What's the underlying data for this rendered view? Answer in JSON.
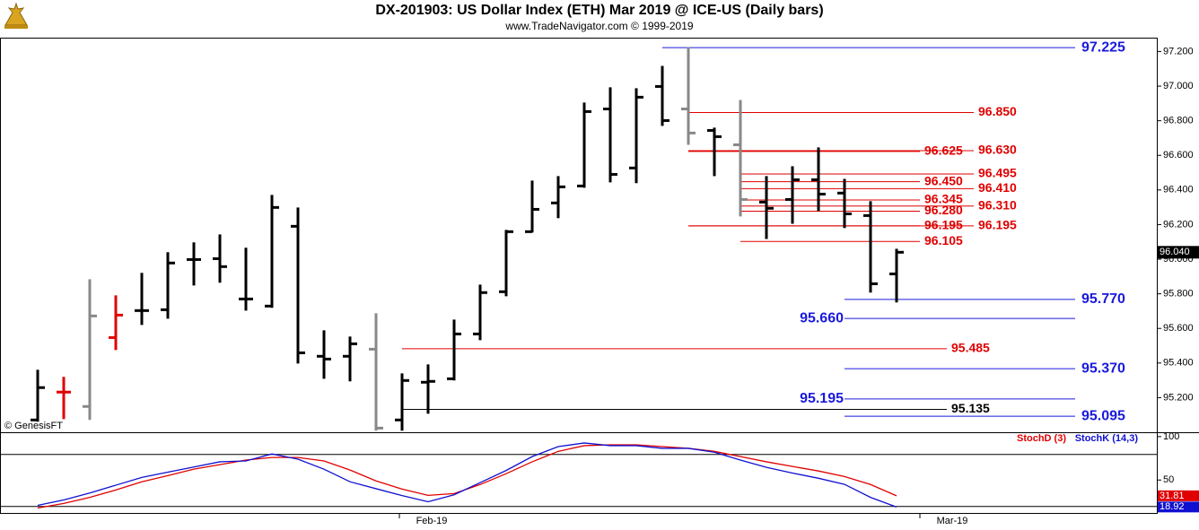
{
  "chart_data": [
    {
      "type": "ohlc",
      "title": "DX-201903:  US Dollar Index (ETH) Mar 2019 @ ICE-US  (Daily bars)",
      "subtitle": "www.TradeNavigator.com © 1999-2019",
      "watermark": "© GenesisFT",
      "open": [
        95.071,
        95.232,
        95.149,
        95.547,
        95.703,
        95.708,
        95.998,
        96.003,
        95.77,
        95.729,
        96.19,
        95.439,
        95.439,
        95.48,
        95.071,
        95.289,
        95.309,
        95.568,
        95.812,
        96.159,
        96.325,
        96.423,
        96.868,
        96.527,
        96.998,
        96.868,
        96.744,
        96.661,
        96.33,
        96.345,
        96.459,
        96.382,
        96.252,
        95.915
      ],
      "high": [
        95.361,
        95.32,
        95.884,
        95.791,
        95.921,
        96.04,
        96.097,
        96.143,
        96.066,
        96.371,
        96.299,
        95.589,
        95.553,
        95.687,
        95.34,
        95.392,
        95.651,
        95.853,
        96.169,
        96.454,
        96.48,
        96.905,
        96.993,
        96.988,
        97.117,
        97.225,
        96.76,
        96.92,
        96.48,
        96.537,
        96.646,
        96.464,
        96.335,
        96.06
      ],
      "low": [
        95.061,
        95.076,
        95.071,
        95.475,
        95.62,
        95.656,
        95.848,
        95.864,
        95.703,
        95.719,
        95.397,
        95.309,
        95.294,
        95.009,
        95.009,
        95.107,
        95.299,
        95.532,
        95.786,
        96.154,
        96.237,
        96.413,
        96.444,
        96.439,
        96.77,
        96.661,
        96.48,
        96.247,
        96.117,
        96.205,
        96.278,
        96.18,
        95.807,
        95.75
      ],
      "close": [
        95.258,
        95.232,
        95.672,
        95.677,
        95.703,
        95.978,
        95.998,
        95.957,
        95.77,
        96.299,
        95.459,
        95.423,
        95.511,
        95.024,
        95.299,
        95.294,
        95.568,
        95.807,
        96.159,
        96.288,
        96.418,
        96.853,
        96.49,
        96.936,
        96.801,
        96.729,
        96.708,
        96.345,
        96.294,
        96.459,
        96.376,
        96.262,
        95.858,
        96.04
      ],
      "colors": [
        "#000000",
        "#e00000",
        "#888888",
        "#e00000",
        "#000000",
        "#000000",
        "#000000",
        "#000000",
        "#000000",
        "#000000",
        "#000000",
        "#000000",
        "#000000",
        "#888888",
        "#000000",
        "#000000",
        "#000000",
        "#000000",
        "#000000",
        "#000000",
        "#000000",
        "#000000",
        "#000000",
        "#000000",
        "#000000",
        "#888888",
        "#000000",
        "#888888",
        "#000000",
        "#000000",
        "#000000",
        "#000000",
        "#000000",
        "#000000"
      ],
      "ylim": [
        95.0,
        97.28
      ],
      "yticks": [
        {
          "value": 97.2,
          "label": "97.200"
        },
        {
          "value": 97.0,
          "label": "97.000"
        },
        {
          "value": 96.8,
          "label": "96.800"
        },
        {
          "value": 96.6,
          "label": "96.600"
        },
        {
          "value": 96.4,
          "label": "96.400"
        },
        {
          "value": 96.2,
          "label": "96.200"
        },
        {
          "value": 96.0,
          "label": "96.000"
        },
        {
          "value": 95.8,
          "label": "95.800"
        },
        {
          "value": 95.6,
          "label": "95.600"
        },
        {
          "value": 95.4,
          "label": "95.400"
        },
        {
          "value": 95.2,
          "label": "95.200"
        }
      ],
      "last_price": {
        "value": 96.04,
        "label": "96.040"
      },
      "levels": [
        {
          "value": 97.225,
          "label": "97.225",
          "color": "#1a1adc"
        },
        {
          "value": 96.85,
          "label": "96.850",
          "color": "#e00000"
        },
        {
          "value": 96.625,
          "label": "96.625",
          "color": "#e00000"
        },
        {
          "value": 96.63,
          "label": "96.630",
          "color": "#e00000"
        },
        {
          "value": 96.495,
          "label": "96.495",
          "color": "#e00000"
        },
        {
          "value": 96.45,
          "label": "96.450",
          "color": "#e00000"
        },
        {
          "value": 96.41,
          "label": "96.410",
          "color": "#e00000"
        },
        {
          "value": 96.345,
          "label": "96.345",
          "color": "#e00000"
        },
        {
          "value": 96.31,
          "label": "96.310",
          "color": "#e00000"
        },
        {
          "value": 96.28,
          "label": "96.280",
          "color": "#e00000"
        },
        {
          "value": 96.195,
          "label": "96.195",
          "color": "#e00000"
        },
        {
          "value": 96.195,
          "label": "96.195",
          "color": "#e00000"
        },
        {
          "value": 96.105,
          "label": "96.105",
          "color": "#e00000"
        },
        {
          "value": 95.77,
          "label": "95.770",
          "color": "#1a1adc"
        },
        {
          "value": 95.66,
          "label": "95.660",
          "color": "#1a1adc"
        },
        {
          "value": 95.485,
          "label": "95.485",
          "color": "#e00000"
        },
        {
          "value": 95.37,
          "label": "95.370",
          "color": "#1a1adc"
        },
        {
          "value": 95.195,
          "label": "95.195",
          "color": "#1a1adc"
        },
        {
          "value": 95.135,
          "label": "95.135",
          "color": "#000000"
        },
        {
          "value": 95.095,
          "label": "95.095",
          "color": "#1a1adc"
        }
      ]
    },
    {
      "type": "line",
      "categories": [
        null,
        null,
        null,
        null,
        null,
        null,
        null,
        null,
        null,
        null,
        null,
        null,
        null,
        null,
        null,
        "Feb-19",
        null,
        null,
        null,
        null,
        null,
        null,
        null,
        null,
        null,
        null,
        null,
        null,
        null,
        null,
        null,
        null,
        null,
        null,
        null,
        "Mar-19"
      ],
      "series": [
        {
          "name": "StochD (3)",
          "color": "#e00000",
          "values": [
            17.7,
            23,
            30,
            38.5,
            48,
            55,
            62.5,
            67.7,
            73,
            76,
            76,
            72,
            61.5,
            49,
            39.6,
            32.3,
            34.4,
            44.8,
            57.3,
            71,
            83,
            89.6,
            90.6,
            90.6,
            88.5,
            86.5,
            83,
            77,
            71,
            65.6,
            60.4,
            54,
            44.8,
            31.81,
            null,
            null
          ]
        },
        {
          "name": "StochK (14,3)",
          "color": "#1010d0",
          "values": [
            20.8,
            27,
            35,
            44,
            53,
            59,
            65,
            71,
            72,
            80,
            74,
            62.5,
            48,
            40,
            32,
            25,
            33,
            47,
            61,
            77,
            88.5,
            92.7,
            89.6,
            89.6,
            86.5,
            86.5,
            82,
            73,
            64.6,
            58,
            52,
            45,
            30,
            18.92,
            null,
            null
          ]
        }
      ],
      "ylim": [
        11,
        104
      ],
      "yticks": [
        100,
        50
      ],
      "hlines": [
        80,
        20
      ]
    }
  ]
}
